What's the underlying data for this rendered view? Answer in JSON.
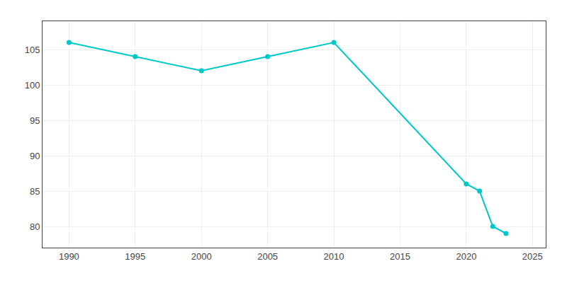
{
  "chart_data": {
    "type": "line",
    "x": [
      1990,
      1995,
      2000,
      2005,
      2010,
      2020,
      2021,
      2022,
      2023
    ],
    "values": [
      106,
      104,
      102,
      104,
      106,
      86,
      85,
      80,
      79
    ],
    "color": "#00c8c8",
    "marker": "circle",
    "xlim": [
      1988,
      2026
    ],
    "ylim": [
      77,
      109
    ],
    "xticks": [
      1990,
      1995,
      2000,
      2005,
      2010,
      2015,
      2020,
      2025
    ],
    "yticks": [
      80,
      85,
      90,
      95,
      100,
      105
    ],
    "grid": true
  }
}
